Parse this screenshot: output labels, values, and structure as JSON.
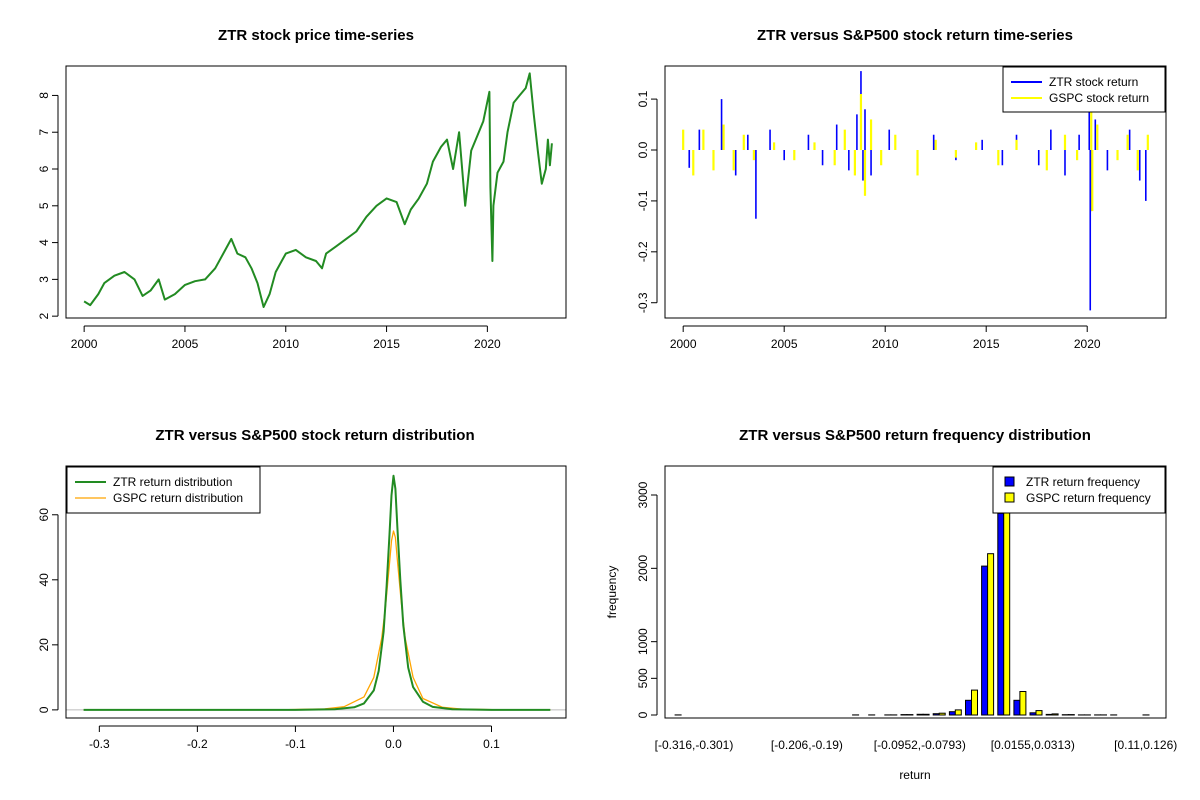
{
  "chart_data": [
    {
      "id": "price",
      "type": "line",
      "title": "ZTR stock price time-series",
      "xlabel": "",
      "ylabel": "",
      "xlim": [
        1999.1,
        2023.9
      ],
      "ylim": [
        1.95,
        8.8
      ],
      "xticks": [
        2000,
        2005,
        2010,
        2015,
        2020
      ],
      "yticks": [
        2,
        3,
        4,
        5,
        6,
        7,
        8
      ],
      "series": [
        {
          "name": "ZTR price",
          "color": "#228B22",
          "x": [
            2000.0,
            2000.3,
            2000.7,
            2001.0,
            2001.5,
            2002.0,
            2002.5,
            2002.9,
            2003.3,
            2003.7,
            2004.0,
            2004.5,
            2005.0,
            2005.5,
            2006.0,
            2006.5,
            2007.0,
            2007.3,
            2007.6,
            2008.0,
            2008.3,
            2008.6,
            2008.9,
            2009.2,
            2009.5,
            2009.8,
            2010.0,
            2010.5,
            2011.0,
            2011.5,
            2011.8,
            2012.0,
            2012.5,
            2013.0,
            2013.5,
            2014.0,
            2014.5,
            2015.0,
            2015.5,
            2015.9,
            2016.2,
            2016.6,
            2017.0,
            2017.3,
            2017.7,
            2018.0,
            2018.3,
            2018.6,
            2018.9,
            2019.2,
            2019.5,
            2019.8,
            2020.1,
            2020.15,
            2020.25,
            2020.3,
            2020.5,
            2020.8,
            2021.0,
            2021.3,
            2021.6,
            2021.9,
            2022.1,
            2022.3,
            2022.5,
            2022.7,
            2022.9,
            2023.0,
            2023.1,
            2023.2
          ],
          "values": [
            2.4,
            2.3,
            2.6,
            2.9,
            3.1,
            3.2,
            3.0,
            2.55,
            2.7,
            3.0,
            2.45,
            2.6,
            2.85,
            2.95,
            3.0,
            3.3,
            3.8,
            4.1,
            3.7,
            3.6,
            3.3,
            2.9,
            2.25,
            2.6,
            3.2,
            3.5,
            3.7,
            3.8,
            3.6,
            3.5,
            3.3,
            3.7,
            3.9,
            4.1,
            4.3,
            4.7,
            5.0,
            5.2,
            5.1,
            4.5,
            4.9,
            5.2,
            5.6,
            6.2,
            6.6,
            6.8,
            6.0,
            7.0,
            5.0,
            6.5,
            6.9,
            7.3,
            8.1,
            5.5,
            3.5,
            5.0,
            5.9,
            6.2,
            7.0,
            7.8,
            8.0,
            8.2,
            8.6,
            7.5,
            6.5,
            5.6,
            6.0,
            6.8,
            6.1,
            6.7
          ]
        }
      ]
    },
    {
      "id": "returns",
      "type": "line",
      "title": "ZTR versus S&P500 stock return time-series",
      "xlabel": "",
      "ylabel": "",
      "xlim": [
        1999.1,
        2023.9
      ],
      "ylim": [
        -0.33,
        0.165
      ],
      "xticks": [
        2000,
        2005,
        2010,
        2015,
        2020
      ],
      "yticks": [
        -0.3,
        -0.2,
        -0.1,
        0.0,
        0.1
      ],
      "ytick_labels": [
        "-0.3",
        "-0.2",
        "-0.1",
        "0.0",
        "0.1"
      ],
      "legend": "top-right",
      "series": [
        {
          "name": "ZTR stock return",
          "color": "#0000FF",
          "x": [
            2000.3,
            2000.8,
            2001.5,
            2001.9,
            2002.6,
            2003.2,
            2003.6,
            2004.3,
            2005.0,
            2006.2,
            2006.9,
            2007.6,
            2008.2,
            2008.6,
            2008.8,
            2008.9,
            2009.0,
            2009.3,
            2010.2,
            2011.6,
            2012.4,
            2013.5,
            2014.8,
            2015.8,
            2016.5,
            2017.6,
            2018.2,
            2018.9,
            2019.6,
            2020.1,
            2020.15,
            2020.2,
            2020.4,
            2021.0,
            2022.1,
            2022.6,
            2022.9
          ],
          "values": [
            -0.035,
            0.04,
            -0.03,
            0.1,
            -0.05,
            0.03,
            -0.135,
            0.04,
            -0.02,
            0.03,
            -0.03,
            0.05,
            -0.04,
            0.07,
            0.155,
            -0.06,
            0.08,
            -0.05,
            0.04,
            -0.04,
            0.03,
            -0.02,
            0.02,
            -0.03,
            0.03,
            -0.03,
            0.04,
            -0.05,
            0.03,
            0.08,
            -0.315,
            -0.12,
            0.06,
            -0.04,
            0.04,
            -0.06,
            -0.1
          ]
        },
        {
          "name": "GSPC stock return",
          "color": "#FFFF00",
          "x": [
            2000.0,
            2000.5,
            2001.0,
            2001.5,
            2002.0,
            2002.5,
            2003.0,
            2003.5,
            2004.5,
            2005.5,
            2006.5,
            2007.5,
            2008.0,
            2008.5,
            2008.8,
            2009.0,
            2009.3,
            2009.8,
            2010.5,
            2011.6,
            2012.5,
            2013.5,
            2014.5,
            2015.6,
            2016.5,
            2018.0,
            2018.9,
            2019.5,
            2020.2,
            2020.25,
            2020.5,
            2021.5,
            2022.0,
            2022.5,
            2023.0
          ],
          "values": [
            0.04,
            -0.05,
            0.04,
            -0.04,
            0.05,
            -0.04,
            0.03,
            -0.02,
            0.015,
            -0.02,
            0.015,
            -0.03,
            0.04,
            -0.05,
            0.11,
            -0.09,
            0.06,
            -0.03,
            0.03,
            -0.05,
            0.02,
            -0.015,
            0.015,
            -0.03,
            0.02,
            -0.04,
            0.03,
            -0.02,
            0.09,
            -0.12,
            0.05,
            -0.02,
            0.03,
            -0.04,
            0.03
          ]
        }
      ]
    },
    {
      "id": "density",
      "type": "line",
      "title": "ZTR versus S&P500 stock return distribution",
      "xlabel": "",
      "ylabel": "",
      "xlim": [
        -0.334,
        0.176
      ],
      "ylim": [
        -2.5,
        75
      ],
      "xticks": [
        -0.3,
        -0.2,
        -0.1,
        0.0,
        0.1
      ],
      "xtick_labels": [
        "-0.3",
        "-0.2",
        "-0.1",
        "0.0",
        "0.1"
      ],
      "yticks": [
        0,
        20,
        40,
        60
      ],
      "legend": "top-left",
      "baseline": 0,
      "series": [
        {
          "name": "ZTR return distribution",
          "color": "#228B22",
          "x": [
            -0.316,
            -0.1,
            -0.06,
            -0.04,
            -0.03,
            -0.02,
            -0.015,
            -0.01,
            -0.007,
            -0.004,
            -0.002,
            0.0,
            0.002,
            0.004,
            0.007,
            0.01,
            0.015,
            0.02,
            0.03,
            0.04,
            0.06,
            0.1,
            0.16
          ],
          "values": [
            0.0,
            0.0,
            0.2,
            0.8,
            2.0,
            6.0,
            12.0,
            24.0,
            38.0,
            54.0,
            66.0,
            72.0,
            68.0,
            56.0,
            40.0,
            26.0,
            13.0,
            7.0,
            2.5,
            0.9,
            0.2,
            0.0,
            0.0
          ]
        },
        {
          "name": "GSPC return distribution",
          "color": "#FFA500",
          "x": [
            -0.316,
            -0.12,
            -0.07,
            -0.05,
            -0.03,
            -0.02,
            -0.012,
            -0.008,
            -0.004,
            -0.002,
            0.0,
            0.002,
            0.004,
            0.008,
            0.012,
            0.02,
            0.03,
            0.05,
            0.07,
            0.12,
            0.16
          ],
          "values": [
            0.0,
            0.0,
            0.3,
            1.0,
            4.0,
            10.0,
            22.0,
            32.0,
            45.0,
            52.0,
            55.0,
            53.0,
            46.0,
            33.0,
            22.0,
            10.0,
            3.5,
            0.8,
            0.2,
            0.0,
            0.0
          ]
        }
      ]
    },
    {
      "id": "histogram",
      "type": "bar",
      "title": "ZTR versus S&P500 return frequency distribution",
      "xlabel": "return",
      "ylabel": "frequency",
      "ylim": [
        0,
        3300
      ],
      "yticks": [
        0,
        500,
        1000,
        2000,
        3000
      ],
      "tick_label_every": 7,
      "tick_labels": [
        "[-0.316,-0.301)",
        "[-0.206,-0.19)",
        "[-0.0952,-0.0793)",
        "[0.0155,0.0313)",
        "[0.11,0.126)"
      ],
      "bin_count": 30,
      "legend": "top-right",
      "series": [
        {
          "name": "ZTR return frequency",
          "color": "#0000FF",
          "values": [
            1,
            0,
            0,
            0,
            0,
            0,
            0,
            0,
            0,
            0,
            0,
            1,
            2,
            2,
            5,
            10,
            18,
            45,
            200,
            2030,
            2750,
            200,
            30,
            8,
            4,
            2,
            1,
            1,
            0,
            1
          ]
        },
        {
          "name": "GSPC return frequency",
          "color": "#FFFF00",
          "values": [
            0,
            0,
            0,
            0,
            0,
            0,
            0,
            0,
            0,
            0,
            0,
            0,
            0,
            2,
            5,
            10,
            25,
            70,
            340,
            2200,
            2800,
            320,
            60,
            15,
            5,
            2,
            1,
            0,
            0,
            0
          ]
        }
      ]
    }
  ]
}
